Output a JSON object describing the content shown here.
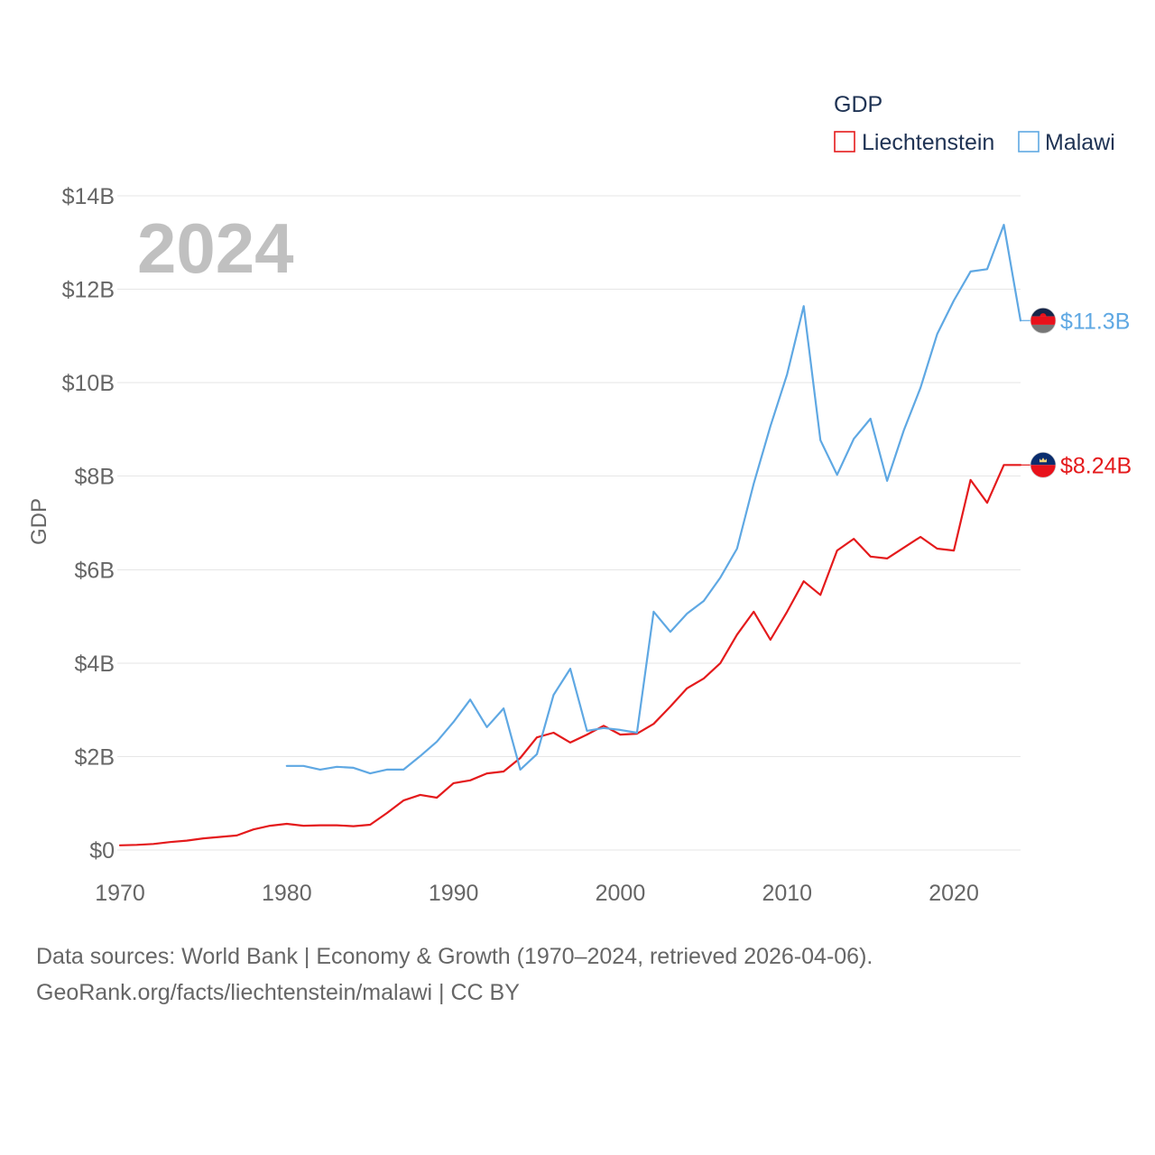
{
  "chart_data": {
    "type": "line",
    "title": "",
    "xlabel": "",
    "ylabel": "GDP",
    "legend_title": "GDP",
    "legend_position": "top-right",
    "year_label": "2024",
    "grid": true,
    "xlim": [
      1970,
      2024
    ],
    "ylim": [
      0,
      14
    ],
    "x_ticks": [
      1970,
      1980,
      1990,
      2000,
      2010,
      2020
    ],
    "x_tick_labels": [
      "1970",
      "1980",
      "1990",
      "2000",
      "2010",
      "2020"
    ],
    "y_ticks": [
      0,
      2,
      4,
      6,
      8,
      10,
      12,
      14
    ],
    "y_tick_labels": [
      "$0",
      "$2B",
      "$4B",
      "$6B",
      "$8B",
      "$10B",
      "$12B",
      "$14B"
    ],
    "x": [
      1970,
      1971,
      1972,
      1973,
      1974,
      1975,
      1976,
      1977,
      1978,
      1979,
      1980,
      1981,
      1982,
      1983,
      1984,
      1985,
      1986,
      1987,
      1988,
      1989,
      1990,
      1991,
      1992,
      1993,
      1994,
      1995,
      1996,
      1997,
      1998,
      1999,
      2000,
      2001,
      2002,
      2003,
      2004,
      2005,
      2006,
      2007,
      2008,
      2009,
      2010,
      2011,
      2012,
      2013,
      2014,
      2015,
      2016,
      2017,
      2018,
      2019,
      2020,
      2021,
      2022,
      2023,
      2024
    ],
    "series": [
      {
        "name": "Liechtenstein",
        "color": "#e41a1c",
        "flag_icon": "liechtenstein-flag-icon",
        "end_label": "$8.24B",
        "values": [
          0.1,
          0.11,
          0.13,
          0.17,
          0.2,
          0.25,
          0.28,
          0.31,
          0.44,
          0.52,
          0.56,
          0.52,
          0.53,
          0.53,
          0.51,
          0.54,
          0.79,
          1.06,
          1.18,
          1.12,
          1.43,
          1.49,
          1.64,
          1.68,
          1.97,
          2.41,
          2.51,
          2.3,
          2.47,
          2.66,
          2.47,
          2.49,
          2.7,
          3.07,
          3.46,
          3.67,
          4.0,
          4.61,
          5.1,
          4.5,
          5.1,
          5.75,
          5.46,
          6.41,
          6.66,
          6.28,
          6.24,
          6.47,
          6.7,
          6.45,
          6.41,
          7.92,
          7.43,
          8.24,
          8.24
        ]
      },
      {
        "name": "Malawi",
        "color": "#5fa8e3",
        "flag_icon": "malawi-flag-icon",
        "end_label": "$11.3B",
        "values": [
          null,
          null,
          null,
          null,
          null,
          null,
          null,
          null,
          null,
          null,
          1.8,
          1.8,
          1.72,
          1.78,
          1.76,
          1.64,
          1.72,
          1.72,
          2.01,
          2.32,
          2.74,
          3.22,
          2.63,
          3.03,
          1.72,
          2.05,
          3.32,
          3.88,
          2.55,
          2.61,
          2.57,
          2.51,
          5.1,
          4.67,
          5.06,
          5.33,
          5.83,
          6.45,
          7.84,
          9.07,
          10.18,
          11.64,
          8.77,
          8.03,
          8.8,
          9.23,
          7.9,
          8.98,
          9.89,
          11.04,
          11.76,
          12.38,
          12.43,
          13.38,
          11.33
        ]
      }
    ]
  },
  "footer": {
    "source": "Data sources: World Bank | Economy & Growth (1970–2024, retrieved 2026-04-06).",
    "credit": "GeoRank.org/facts/liechtenstein/malawi | CC BY"
  }
}
